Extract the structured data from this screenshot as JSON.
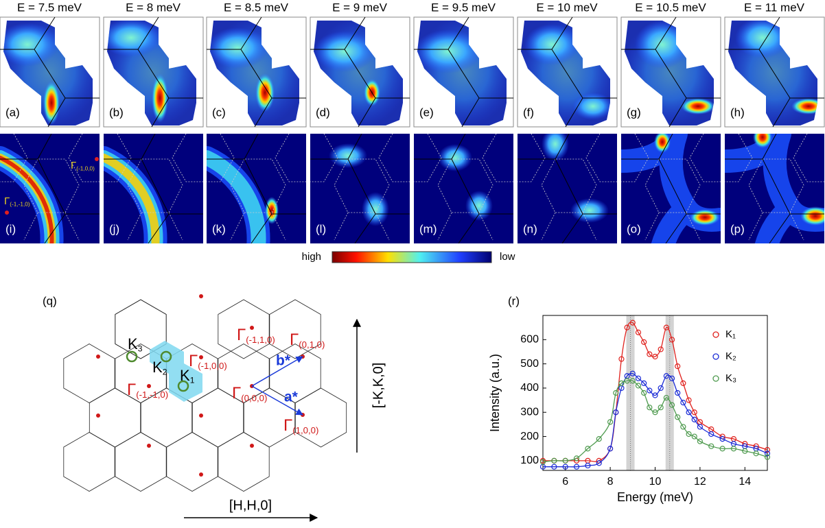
{
  "panels": {
    "energies": [
      "E = 7.5 meV",
      "E = 8 meV",
      "E = 8.5 meV",
      "E = 9 meV",
      "E = 9.5 meV",
      "E = 10 meV",
      "E = 10.5 meV",
      "E = 11 meV"
    ],
    "top_labels": [
      "(a)",
      "(b)",
      "(c)",
      "(d)",
      "(e)",
      "(f)",
      "(g)",
      "(h)"
    ],
    "bottom_labels": [
      "(i)",
      "(j)",
      "(k)",
      "(l)",
      "(m)",
      "(n)",
      "(o)",
      "(p)"
    ],
    "gamma_labels": [
      {
        "symbol": "Γ",
        "index": "(-1,0,0)"
      },
      {
        "symbol": "Γ",
        "index": "(-1,-1,0)"
      }
    ]
  },
  "colorbar": {
    "high": "high",
    "low": "low"
  },
  "diagram": {
    "label": "(q)",
    "gammas": [
      {
        "symbol": "Γ",
        "index": "(-1,1,0)"
      },
      {
        "symbol": "Γ",
        "index": "(-1,0,0)"
      },
      {
        "symbol": "Γ",
        "index": "(0,1,0)"
      },
      {
        "symbol": "Γ",
        "index": "(0,0,0)"
      },
      {
        "symbol": "Γ",
        "index": "(-1,-1,0)"
      },
      {
        "symbol": "Γ",
        "index": "(1,0,0)"
      }
    ],
    "k_points": [
      {
        "symbol": "K",
        "index": "3"
      },
      {
        "symbol": "K",
        "index": "2"
      },
      {
        "symbol": "K",
        "index": "1"
      }
    ],
    "vectors": [
      "b*",
      "a*"
    ],
    "x_axis": "[H,H,0]",
    "y_axis": "[-K,K,0]"
  },
  "chart_data": {
    "type": "scatter",
    "panel_label": "(r)",
    "xlabel": "Energy  (meV)",
    "ylabel": "Intensity (a.u.)",
    "x": [
      5,
      5.5,
      6,
      6.5,
      7,
      7.5,
      8,
      8.25,
      8.5,
      8.75,
      9,
      9.25,
      9.5,
      9.75,
      10,
      10.25,
      10.5,
      10.75,
      11,
      11.25,
      11.5,
      11.75,
      12,
      12.5,
      13,
      13.5,
      14,
      14.5,
      15
    ],
    "series": [
      {
        "name": "K₁",
        "color": "#e0201c",
        "values": [
          100,
          100,
          100,
          100,
          100,
          100,
          150,
          300,
          520,
          650,
          670,
          630,
          590,
          540,
          530,
          560,
          650,
          600,
          490,
          420,
          350,
          300,
          260,
          230,
          200,
          190,
          170,
          160,
          145
        ]
      },
      {
        "name": "K₂",
        "color": "#1a2bd6",
        "values": [
          75,
          75,
          75,
          75,
          80,
          90,
          150,
          300,
          400,
          450,
          460,
          440,
          420,
          390,
          370,
          400,
          450,
          440,
          380,
          340,
          300,
          270,
          240,
          210,
          190,
          170,
          160,
          150,
          130
        ]
      },
      {
        "name": "K₃",
        "color": "#4e9a4e",
        "values": [
          95,
          100,
          100,
          110,
          150,
          190,
          260,
          380,
          420,
          430,
          430,
          410,
          380,
          320,
          300,
          320,
          360,
          330,
          280,
          240,
          210,
          200,
          180,
          160,
          150,
          150,
          140,
          130,
          115
        ]
      }
    ],
    "xlim": [
      5,
      15
    ],
    "ylim": [
      60,
      700
    ],
    "xticks": [
      6,
      8,
      10,
      12,
      14
    ],
    "yticks": [
      100,
      200,
      300,
      400,
      500,
      600
    ],
    "highlight_x": [
      8.9,
      10.65
    ],
    "legend": "upper right"
  }
}
